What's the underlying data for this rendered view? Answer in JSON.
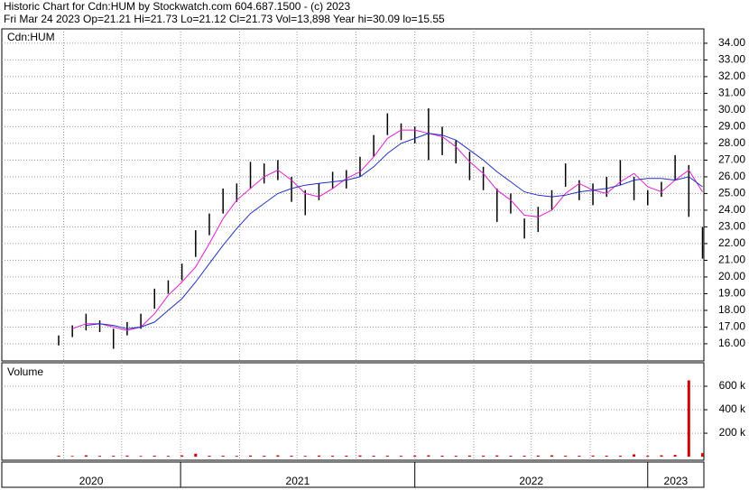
{
  "header": {
    "title": "Historic Chart for Cdn:HUM by Stockwatch.com 604.687.1500 - (c) 2023",
    "subtitle": "Fri Mar 24 2023   Op=21.21  Hi=21.73  Lo=21.12  Cl=21.73  Vol=13,898  Year hi=30.09  lo=15.55"
  },
  "chart_data": [
    {
      "type": "ohlc",
      "label": "Cdn:HUM",
      "color": "#000000",
      "high": [
        16.5,
        17.1,
        17.8,
        17.4,
        16.9,
        17.3,
        17.8,
        19.3,
        19.8,
        20.8,
        22.8,
        23.8,
        25.3,
        25.6,
        26.9,
        26.8,
        27.0,
        26.0,
        25.2,
        25.6,
        26.3,
        26.4,
        27.2,
        28.5,
        29.8,
        29.2,
        29.0,
        30.1,
        29.0,
        28.2,
        27.5,
        26.6,
        25.3,
        25.0,
        23.5,
        24.2,
        25.2,
        26.8,
        25.8,
        25.6,
        26.0,
        27.0,
        26.0,
        25.2,
        25.7,
        27.3,
        26.7,
        23.0
      ],
      "low": [
        15.9,
        16.4,
        16.8,
        16.7,
        15.7,
        16.5,
        16.9,
        18.1,
        19.0,
        19.8,
        21.2,
        22.5,
        23.8,
        24.5,
        25.3,
        25.6,
        25.8,
        24.5,
        23.7,
        24.6,
        25.3,
        25.3,
        26.0,
        27.2,
        28.5,
        28.2,
        28.0,
        27.0,
        27.3,
        26.8,
        25.8,
        25.2,
        23.3,
        23.8,
        22.3,
        22.7,
        24.0,
        25.4,
        24.6,
        24.3,
        24.8,
        25.5,
        24.6,
        24.3,
        24.8,
        25.8,
        23.6,
        21.1
      ],
      "moving_averages": [
        {
          "color": "#e020d0",
          "values": [
            null,
            16.9,
            17.2,
            17.2,
            17.0,
            16.8,
            17.0,
            17.8,
            18.9,
            19.7,
            20.6,
            22.0,
            23.5,
            24.6,
            25.3,
            26.0,
            26.4,
            25.8,
            25.0,
            24.8,
            25.3,
            25.9,
            26.3,
            27.2,
            28.3,
            28.8,
            28.8,
            28.6,
            28.4,
            27.8,
            26.9,
            26.2,
            25.2,
            24.6,
            23.7,
            23.6,
            24.0,
            25.0,
            25.6,
            25.2,
            25.0,
            25.7,
            26.2,
            25.4,
            25.1,
            25.8,
            26.4,
            25.1
          ]
        },
        {
          "color": "#2030c0",
          "values": [
            null,
            null,
            17.1,
            17.2,
            17.1,
            16.9,
            17.0,
            17.3,
            18.0,
            18.7,
            19.7,
            20.8,
            21.9,
            22.9,
            23.8,
            24.4,
            25.0,
            25.3,
            25.5,
            25.6,
            25.7,
            25.8,
            26.0,
            26.6,
            27.4,
            28.0,
            28.3,
            28.6,
            28.5,
            28.2,
            27.6,
            27.0,
            26.3,
            25.7,
            25.1,
            24.9,
            24.8,
            24.9,
            25.1,
            25.2,
            25.3,
            25.5,
            25.8,
            25.9,
            25.9,
            25.8,
            26.0,
            25.4
          ]
        }
      ],
      "ylim": [
        14.97,
        34.86
      ],
      "yticks": [
        {
          "value": 16,
          "label": "16.00"
        },
        {
          "value": 17,
          "label": "17.00"
        },
        {
          "value": 18,
          "label": "18.00"
        },
        {
          "value": 19,
          "label": "19.00"
        },
        {
          "value": 20,
          "label": "20.00"
        },
        {
          "value": 21,
          "label": "21.00"
        },
        {
          "value": 22,
          "label": "22.00"
        },
        {
          "value": 23,
          "label": "23.00"
        },
        {
          "value": 24,
          "label": "24.00"
        },
        {
          "value": 25,
          "label": "25.00"
        },
        {
          "value": 26,
          "label": "26.00"
        },
        {
          "value": 27,
          "label": "27.00"
        },
        {
          "value": 28,
          "label": "28.00"
        },
        {
          "value": 29,
          "label": "29.00"
        },
        {
          "value": 30,
          "label": "30.00"
        },
        {
          "value": 31,
          "label": "31.00"
        },
        {
          "value": 32,
          "label": "32.00"
        },
        {
          "value": 33,
          "label": "33.00"
        },
        {
          "value": 34,
          "label": "34.00"
        }
      ],
      "xlim": [
        -4.15,
        47.1
      ],
      "xticks": [
        0.36,
        4.6,
        8.9,
        13.2,
        17.4,
        21.7,
        26.0,
        30.3,
        34.5,
        38.8,
        43.0
      ],
      "year_ticks": [
        8.9,
        26.0,
        43.0
      ],
      "year_labels": [
        "2020",
        "2021",
        "2022",
        "2023"
      ],
      "grid": true
    },
    {
      "type": "bar",
      "label": "Volume",
      "color": "#cc0000",
      "values": [
        9000,
        6000,
        12000,
        7000,
        8000,
        10000,
        6000,
        9000,
        7000,
        11000,
        25000,
        8000,
        9000,
        7000,
        10000,
        8000,
        12000,
        9000,
        7000,
        10000,
        8000,
        9000,
        11000,
        8000,
        9000,
        7000,
        10000,
        12000,
        9000,
        8000,
        10000,
        9000,
        11000,
        8000,
        9000,
        10000,
        12000,
        9000,
        8000,
        10000,
        9000,
        8000,
        20000,
        9000,
        12000,
        15000,
        650000,
        30000
      ],
      "ylim": [
        -30000,
        800000
      ],
      "yticks": [
        {
          "value": 200000,
          "label": "200 k"
        },
        {
          "value": 400000,
          "label": "400 k"
        },
        {
          "value": 600000,
          "label": "600 k"
        }
      ],
      "grid": true
    }
  ]
}
